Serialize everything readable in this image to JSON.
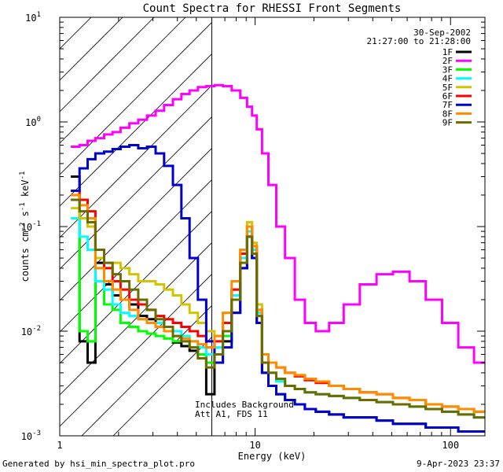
{
  "chart_data": {
    "type": "line",
    "title": "Count Spectra for RHESSI Front Segments",
    "date": "30-Sep-2002",
    "time_range": "21:27:00 to 21:28:00",
    "xlabel": "Energy (keV)",
    "ylabel": "counts cm-2 s-1 keV-1",
    "ylabel_parts": [
      "counts cm",
      "-2",
      " s",
      "-1",
      " keV",
      "-1"
    ],
    "xscale": "log",
    "yscale": "log",
    "xlim": [
      1,
      150
    ],
    "ylim": [
      0.001,
      10
    ],
    "x_tick_labels": [
      {
        "value": 1,
        "label": "1"
      },
      {
        "value": 10,
        "label": "10"
      },
      {
        "value": 100,
        "label": "100"
      }
    ],
    "y_tick_labels": [
      {
        "value": 0.001,
        "base": "10",
        "exp": "-3"
      },
      {
        "value": 0.01,
        "base": "10",
        "exp": "-2"
      },
      {
        "value": 0.1,
        "base": "10",
        "exp": "-1"
      },
      {
        "value": 1,
        "base": "10",
        "exp": "0"
      },
      {
        "value": 10,
        "base": "10",
        "exp": "1"
      }
    ],
    "hatched_region_keV": [
      1,
      6
    ],
    "annotations": [
      "Includes Background",
      "Att A1, FDS 11"
    ],
    "legend_position": "top-right",
    "series": [
      {
        "name": "1F",
        "color": "#000000",
        "x": [
          1.2,
          1.33,
          1.45,
          1.6,
          1.78,
          1.95,
          2.15,
          2.4,
          2.65,
          2.95,
          3.25,
          3.6,
          4.0,
          4.4,
          4.85,
          5.35,
          5.9,
          6.5,
          7.2,
          8.0,
          8.8,
          9.4,
          9.9,
          10.5,
          11.2,
          12.2,
          13.5,
          15,
          17,
          19,
          22,
          26,
          31,
          38,
          46,
          56,
          68,
          82,
          100,
          120,
          145
        ],
        "y": [
          0.3,
          0.008,
          0.005,
          0.045,
          0.028,
          0.022,
          0.02,
          0.018,
          0.014,
          0.013,
          0.012,
          0.011,
          0.0078,
          0.0072,
          0.0065,
          0.006,
          0.0025,
          0.005,
          0.008,
          0.015,
          0.04,
          0.08,
          0.05,
          0.012,
          0.004,
          0.003,
          0.0025,
          0.0022,
          0.002,
          0.0018,
          0.0017,
          0.0016,
          0.0015,
          0.0015,
          0.0014,
          0.0013,
          0.0013,
          0.0012,
          0.0012,
          0.0011,
          0.0011
        ]
      },
      {
        "name": "2F",
        "color": "#ff00ff",
        "x": [
          1.2,
          1.33,
          1.45,
          1.6,
          1.78,
          1.95,
          2.15,
          2.4,
          2.65,
          2.95,
          3.25,
          3.6,
          4.0,
          4.4,
          4.85,
          5.35,
          5.9,
          6.5,
          7.2,
          8.0,
          8.8,
          9.4,
          9.9,
          10.5,
          11.2,
          12.2,
          13.5,
          15,
          17,
          19,
          22,
          26,
          31,
          38,
          46,
          56,
          68,
          82,
          100,
          120,
          145
        ],
        "y": [
          0.58,
          0.6,
          0.66,
          0.7,
          0.76,
          0.8,
          0.88,
          0.97,
          1.05,
          1.15,
          1.28,
          1.45,
          1.65,
          1.85,
          2.0,
          2.15,
          2.2,
          2.25,
          2.2,
          2.0,
          1.7,
          1.4,
          1.15,
          0.85,
          0.5,
          0.25,
          0.1,
          0.05,
          0.02,
          0.012,
          0.01,
          0.012,
          0.018,
          0.028,
          0.035,
          0.037,
          0.03,
          0.02,
          0.012,
          0.007,
          0.005
        ]
      },
      {
        "name": "3F",
        "color": "#00ff00",
        "x": [
          1.2,
          1.33,
          1.45,
          1.6,
          1.78,
          1.95,
          2.15,
          2.4,
          2.65,
          2.95,
          3.25,
          3.6,
          4.0,
          4.4,
          4.85,
          5.35,
          5.9,
          6.5,
          7.2,
          8.0,
          8.8,
          9.4,
          9.9,
          10.5,
          11.2,
          12.2,
          13.5,
          15,
          17,
          19,
          22,
          26,
          31,
          38,
          46,
          56,
          68,
          82,
          100,
          120,
          145
        ],
        "y": [
          0.2,
          0.01,
          0.008,
          0.04,
          0.018,
          0.016,
          0.012,
          0.011,
          0.01,
          0.0095,
          0.009,
          0.0085,
          0.008,
          0.008,
          0.007,
          0.006,
          0.005,
          0.006,
          0.009,
          0.02,
          0.05,
          0.1,
          0.06,
          0.014,
          0.005,
          0.004,
          0.0035,
          0.003,
          0.0028,
          0.0026,
          0.0025,
          0.0024,
          0.0023,
          0.0022,
          0.0021,
          0.002,
          0.0019,
          0.0018,
          0.0017,
          0.0016,
          0.0015
        ]
      },
      {
        "name": "4F",
        "color": "#00ffff",
        "x": [
          1.2,
          1.33,
          1.45,
          1.6,
          1.78,
          1.95,
          2.15,
          2.4,
          2.65,
          2.95,
          3.25,
          3.6,
          4.0,
          4.4,
          4.85,
          5.35,
          5.9,
          6.5,
          7.2,
          8.0,
          8.8,
          9.4,
          9.9,
          10.5,
          11.2,
          12.2,
          13.5,
          15,
          17,
          19,
          22,
          26,
          31,
          38,
          46,
          56,
          68,
          82,
          100,
          120,
          145
        ],
        "y": [
          0.12,
          0.08,
          0.06,
          0.03,
          0.025,
          0.018,
          0.015,
          0.014,
          0.013,
          0.012,
          0.012,
          0.011,
          0.01,
          0.009,
          0.008,
          0.007,
          0.006,
          0.007,
          0.01,
          0.022,
          0.05,
          0.09,
          0.06,
          0.015,
          0.005,
          0.004,
          0.0033,
          0.003,
          0.0028,
          0.0026,
          0.0025,
          0.0024,
          0.0023,
          0.0022,
          0.0021,
          0.002,
          0.0019,
          0.0018,
          0.0017,
          0.0016,
          0.0015
        ]
      },
      {
        "name": "5F",
        "color": "#d4c400",
        "x": [
          1.2,
          1.33,
          1.45,
          1.6,
          1.78,
          1.95,
          2.15,
          2.4,
          2.65,
          2.95,
          3.25,
          3.6,
          4.0,
          4.4,
          4.85,
          5.35,
          5.9,
          6.5,
          7.2,
          8.0,
          8.8,
          9.4,
          9.9,
          10.5,
          11.2,
          12.2,
          13.5,
          15,
          17,
          19,
          22,
          26,
          31,
          38,
          46,
          56,
          68,
          82,
          100,
          120,
          145
        ],
        "y": [
          0.15,
          0.12,
          0.1,
          0.05,
          0.04,
          0.045,
          0.04,
          0.035,
          0.03,
          0.03,
          0.028,
          0.025,
          0.022,
          0.018,
          0.015,
          0.012,
          0.01,
          0.009,
          0.012,
          0.025,
          0.06,
          0.11,
          0.07,
          0.018,
          0.006,
          0.005,
          0.0045,
          0.004,
          0.0038,
          0.0035,
          0.0033,
          0.003,
          0.0028,
          0.0026,
          0.0025,
          0.0023,
          0.0022,
          0.002,
          0.0019,
          0.0018,
          0.0017
        ]
      },
      {
        "name": "6F",
        "color": "#ff0000",
        "x": [
          1.2,
          1.33,
          1.45,
          1.6,
          1.78,
          1.95,
          2.15,
          2.4,
          2.65,
          2.95,
          3.25,
          3.6,
          4.0,
          4.4,
          4.85,
          5.35,
          5.9,
          6.5,
          7.2,
          8.0,
          8.8,
          9.4,
          9.9,
          10.5,
          11.2,
          12.2,
          13.5,
          15,
          17,
          19,
          22,
          26,
          31,
          38,
          46,
          56,
          68,
          82,
          100,
          120,
          145
        ],
        "y": [
          0.22,
          0.18,
          0.14,
          0.06,
          0.04,
          0.03,
          0.025,
          0.02,
          0.018,
          0.016,
          0.014,
          0.013,
          0.012,
          0.011,
          0.01,
          0.009,
          0.007,
          0.008,
          0.012,
          0.025,
          0.055,
          0.1,
          0.065,
          0.016,
          0.006,
          0.005,
          0.0045,
          0.004,
          0.0037,
          0.0034,
          0.0032,
          0.003,
          0.0028,
          0.0026,
          0.0025,
          0.0023,
          0.0022,
          0.002,
          0.0019,
          0.0018,
          0.0017
        ]
      },
      {
        "name": "7F",
        "color": "#0000cc",
        "x": [
          1.2,
          1.33,
          1.45,
          1.6,
          1.78,
          1.95,
          2.15,
          2.4,
          2.65,
          2.95,
          3.25,
          3.6,
          4.0,
          4.4,
          4.85,
          5.35,
          5.9,
          6.5,
          7.2,
          8.0,
          8.8,
          9.4,
          9.9,
          10.5,
          11.2,
          12.2,
          13.5,
          15,
          17,
          19,
          22,
          26,
          31,
          38,
          46,
          56,
          68,
          82,
          100,
          120,
          145
        ],
        "y": [
          0.22,
          0.36,
          0.44,
          0.5,
          0.52,
          0.55,
          0.58,
          0.6,
          0.56,
          0.58,
          0.5,
          0.38,
          0.25,
          0.12,
          0.05,
          0.02,
          0.008,
          0.005,
          0.007,
          0.015,
          0.04,
          0.08,
          0.05,
          0.012,
          0.004,
          0.003,
          0.0025,
          0.0022,
          0.002,
          0.0018,
          0.0017,
          0.0016,
          0.0015,
          0.0015,
          0.0014,
          0.0013,
          0.0013,
          0.0012,
          0.0012,
          0.0011,
          0.0011
        ]
      },
      {
        "name": "8F",
        "color": "#ff8c00",
        "x": [
          1.2,
          1.33,
          1.45,
          1.6,
          1.78,
          1.95,
          2.15,
          2.4,
          2.65,
          2.95,
          3.25,
          3.6,
          4.0,
          4.4,
          4.85,
          5.35,
          5.9,
          6.5,
          7.2,
          8.0,
          8.8,
          9.4,
          9.9,
          10.5,
          11.2,
          12.2,
          13.5,
          15,
          17,
          19,
          22,
          26,
          31,
          38,
          46,
          56,
          68,
          82,
          100,
          120,
          145
        ],
        "y": [
          0.2,
          0.16,
          0.12,
          0.04,
          0.03,
          0.025,
          0.02,
          0.016,
          0.013,
          0.012,
          0.011,
          0.01,
          0.009,
          0.0085,
          0.008,
          0.0075,
          0.007,
          0.009,
          0.015,
          0.03,
          0.06,
          0.1,
          0.065,
          0.016,
          0.006,
          0.005,
          0.0045,
          0.004,
          0.0038,
          0.0035,
          0.0033,
          0.003,
          0.0028,
          0.0026,
          0.0025,
          0.0023,
          0.0022,
          0.002,
          0.0019,
          0.0018,
          0.0017
        ]
      },
      {
        "name": "9F",
        "color": "#6b6b00",
        "x": [
          1.2,
          1.33,
          1.45,
          1.6,
          1.78,
          1.95,
          2.15,
          2.4,
          2.65,
          2.95,
          3.25,
          3.6,
          4.0,
          4.4,
          4.85,
          5.35,
          5.9,
          6.5,
          7.2,
          8.0,
          8.8,
          9.4,
          9.9,
          10.5,
          11.2,
          12.2,
          13.5,
          15,
          17,
          19,
          22,
          26,
          31,
          38,
          46,
          56,
          68,
          82,
          100,
          120,
          145
        ],
        "y": [
          0.18,
          0.14,
          0.11,
          0.06,
          0.045,
          0.035,
          0.03,
          0.025,
          0.02,
          0.016,
          0.013,
          0.011,
          0.009,
          0.008,
          0.007,
          0.0055,
          0.0045,
          0.006,
          0.01,
          0.02,
          0.045,
          0.08,
          0.055,
          0.014,
          0.005,
          0.004,
          0.0035,
          0.003,
          0.0028,
          0.0026,
          0.0025,
          0.0024,
          0.0023,
          0.0022,
          0.0021,
          0.002,
          0.0019,
          0.0018,
          0.0017,
          0.0016,
          0.0015
        ]
      }
    ]
  },
  "footer": {
    "generated_by": "Generated by hsi_min_spectra_plot.pro",
    "date_stamp": "9-Apr-2023 23:37"
  }
}
